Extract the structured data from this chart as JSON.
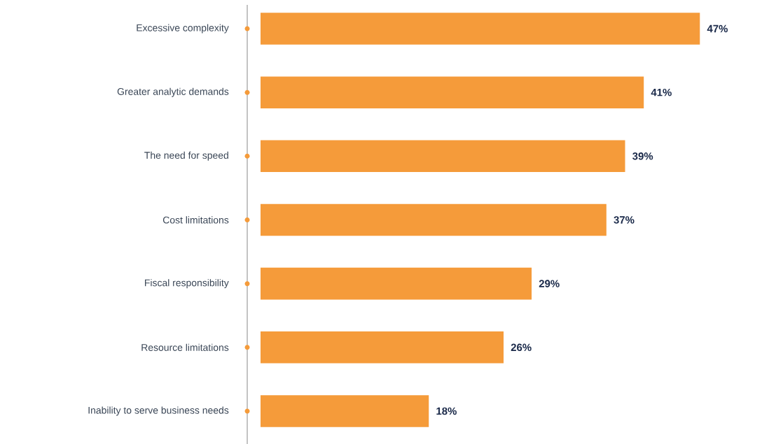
{
  "chart_data": {
    "type": "bar",
    "orientation": "horizontal",
    "categories": [
      "Excessive complexity",
      "Greater analytic demands",
      "The need for speed",
      "Cost limitations",
      "Fiscal responsibility",
      "Resource limitations",
      "Inability to serve business needs"
    ],
    "values": [
      47,
      41,
      39,
      37,
      29,
      26,
      18
    ],
    "value_labels": [
      "47%",
      "41%",
      "39%",
      "37%",
      "29%",
      "26%",
      "18%"
    ],
    "color": "#f59b3a"
  }
}
